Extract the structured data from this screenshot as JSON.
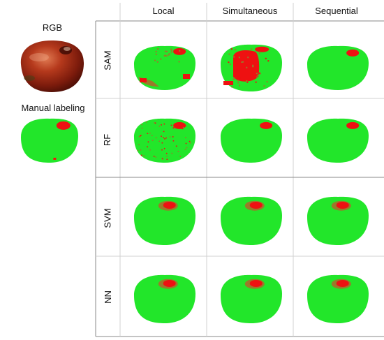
{
  "left_panel": {
    "rgb_label": "RGB",
    "manual_label": "Manual labeling"
  },
  "columns": [
    "Local",
    "Simultaneous",
    "Sequential"
  ],
  "rows": [
    "SAM",
    "RF",
    "SVM",
    "NN"
  ],
  "colors": {
    "healthy": "#22e62a",
    "defect": "#ee1111",
    "boundary": "#9a7a2a",
    "tomato_dark": "#5a1208",
    "tomato_mid": "#a3321a",
    "tomato_light": "#d9704a",
    "grid_line": "#999999",
    "grid_line_light": "#d6d6d6"
  }
}
